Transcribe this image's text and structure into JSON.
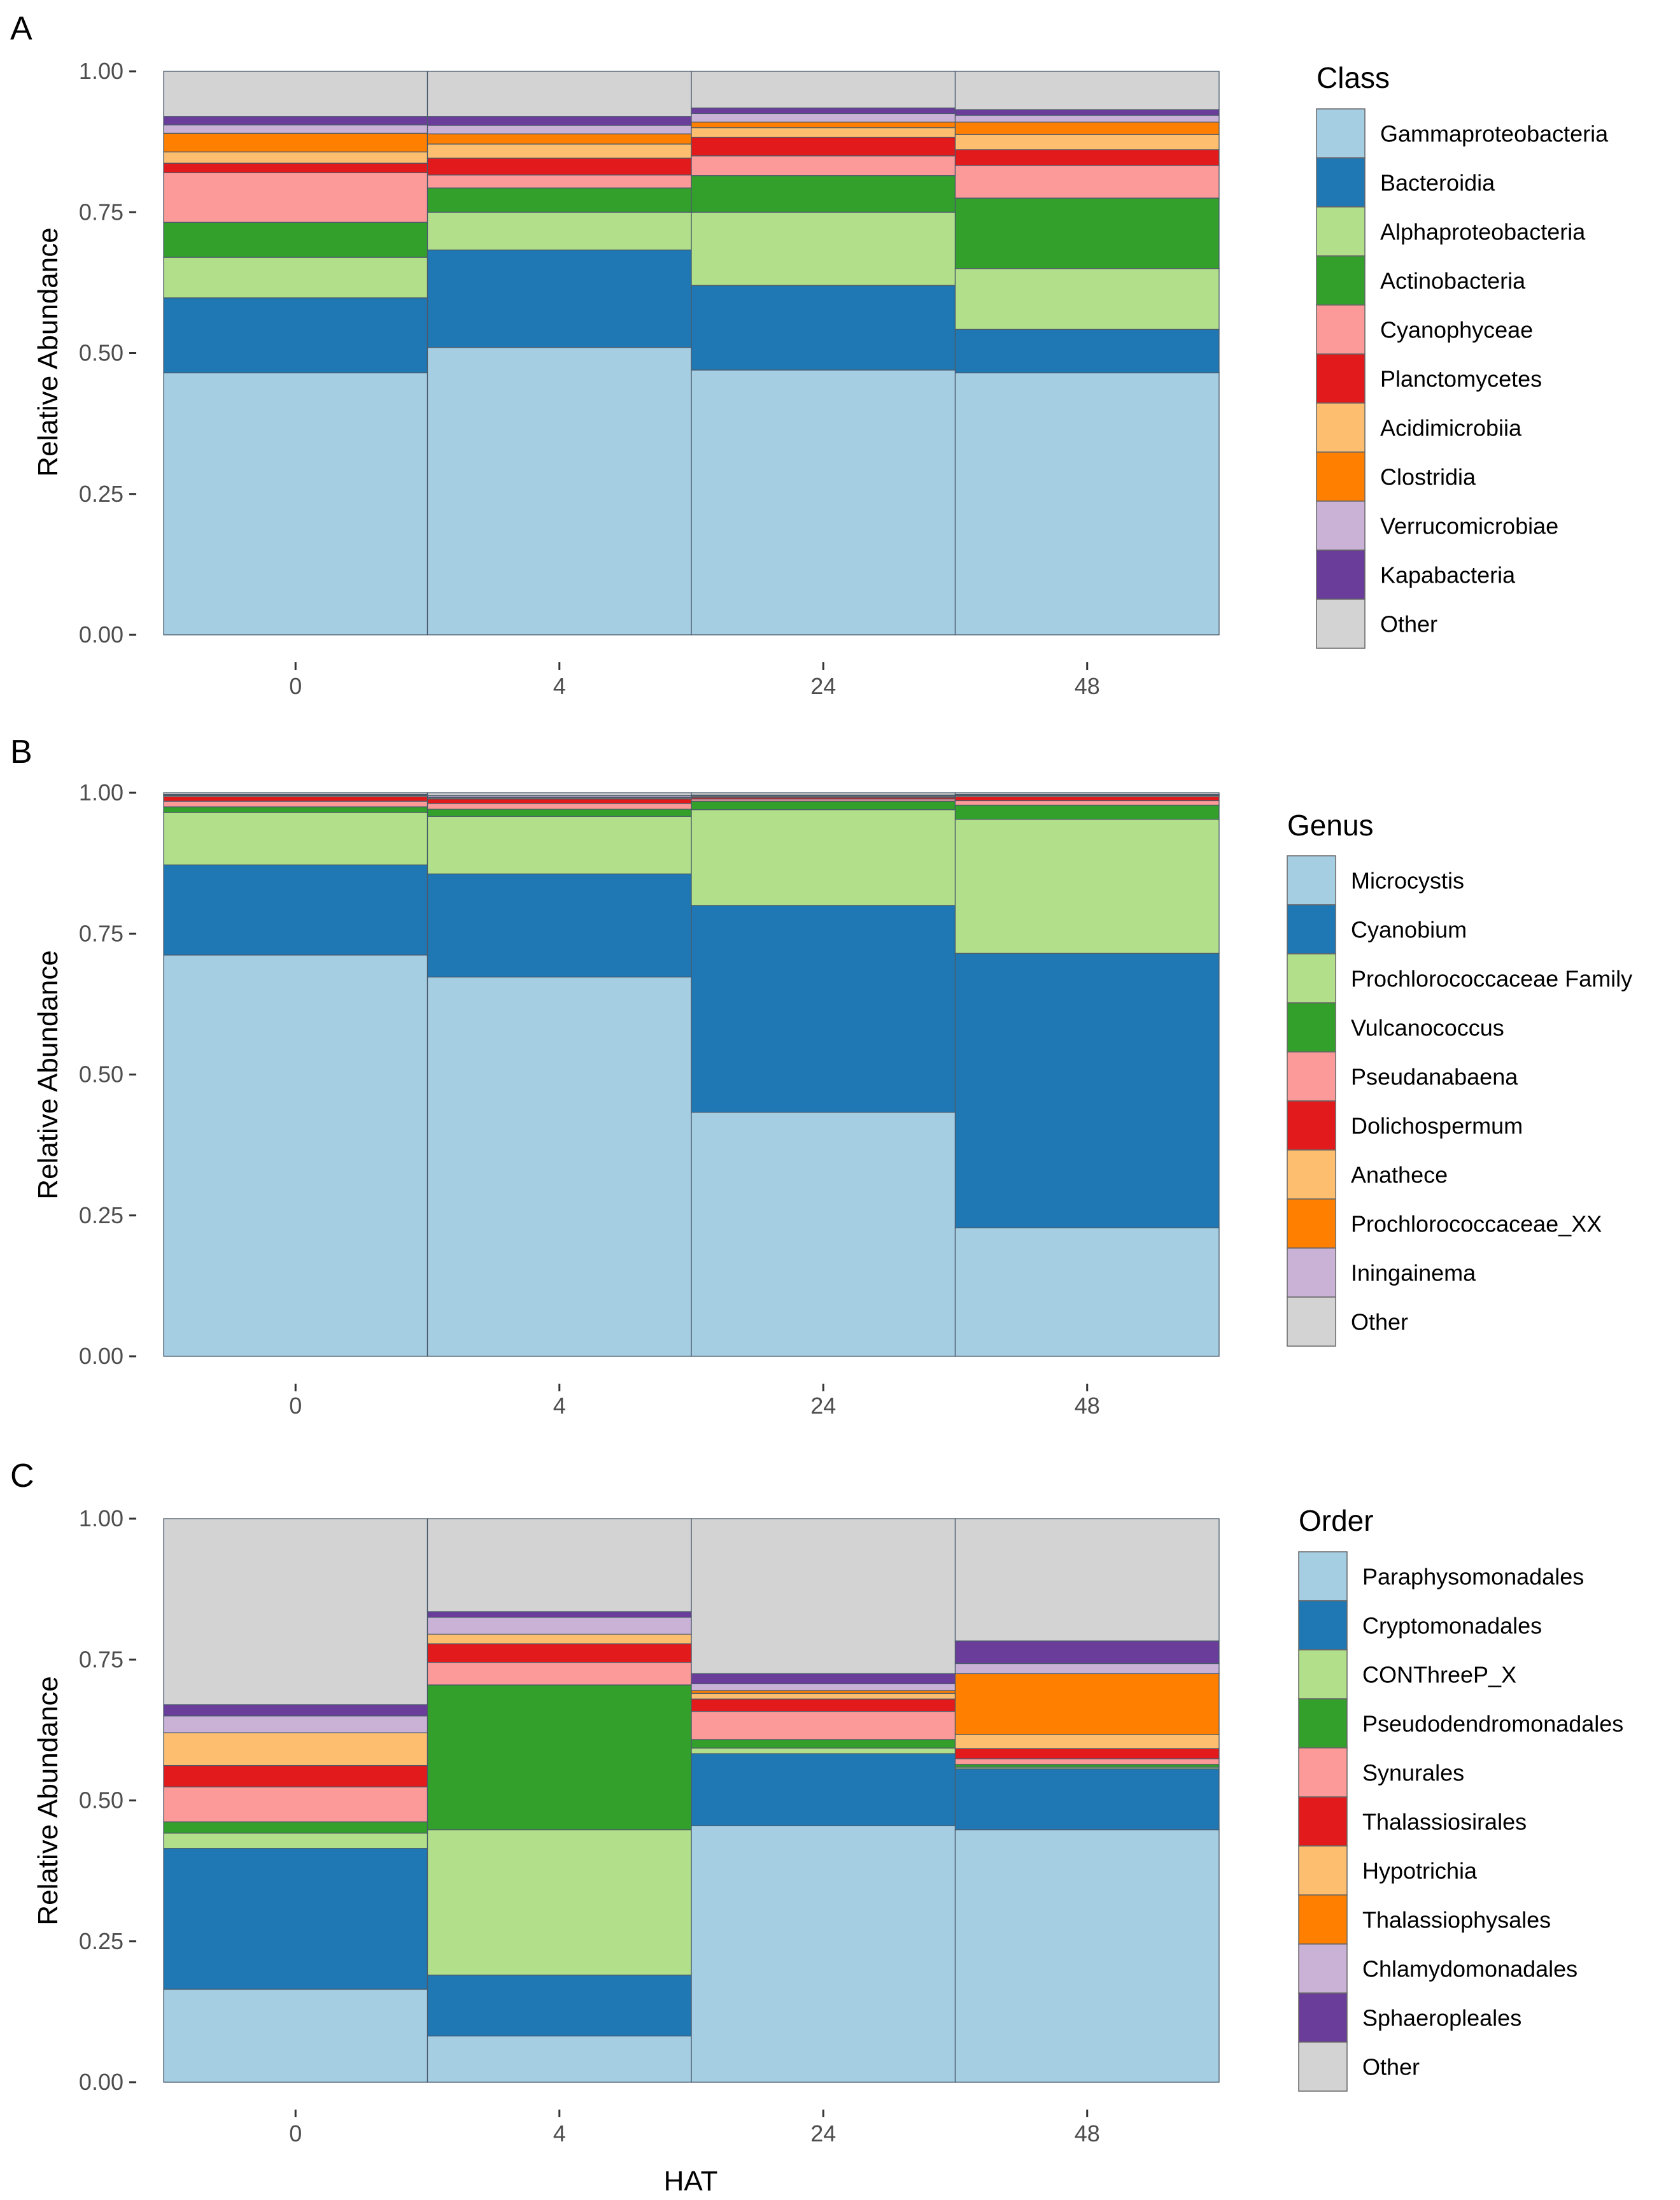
{
  "figure": {
    "xlabel": "HAT",
    "ylabel": "Relative Abundance"
  },
  "chart_data": [
    {
      "panel": "A",
      "type": "bar",
      "stacked": true,
      "title": "",
      "xlabel": "",
      "ylabel": "Relative Abundance",
      "ylim": [
        0,
        1
      ],
      "yticks": [
        "0.00",
        "0.25",
        "0.50",
        "0.75",
        "1.00"
      ],
      "categories": [
        "0",
        "4",
        "24",
        "48"
      ],
      "legend_title": "Class",
      "legend_position": "right",
      "series": [
        {
          "name": "Gammaproteobacteria",
          "color": "#A6CEE3",
          "values": [
            0.465,
            0.51,
            0.47,
            0.465
          ]
        },
        {
          "name": "Bacteroidia",
          "color": "#1F78B4",
          "values": [
            0.133,
            0.173,
            0.15,
            0.077
          ]
        },
        {
          "name": "Alphaproteobacteria",
          "color": "#B2DF8A",
          "values": [
            0.072,
            0.067,
            0.13,
            0.108
          ]
        },
        {
          "name": "Actinobacteria",
          "color": "#33A02C",
          "values": [
            0.062,
            0.043,
            0.065,
            0.125
          ]
        },
        {
          "name": "Cyanophyceae",
          "color": "#FB9A99",
          "values": [
            0.088,
            0.023,
            0.035,
            0.058
          ]
        },
        {
          "name": "Planctomycetes",
          "color": "#E31A1C",
          "values": [
            0.017,
            0.03,
            0.033,
            0.028
          ]
        },
        {
          "name": "Acidimicrobiia",
          "color": "#FDBF6F",
          "values": [
            0.02,
            0.025,
            0.017,
            0.027
          ]
        },
        {
          "name": "Clostridia",
          "color": "#FF7F00",
          "values": [
            0.033,
            0.018,
            0.01,
            0.022
          ]
        },
        {
          "name": "Verrucomicrobiae",
          "color": "#CAB2D6",
          "values": [
            0.015,
            0.015,
            0.015,
            0.012
          ]
        },
        {
          "name": "Kapabacteria",
          "color": "#6A3D9A",
          "values": [
            0.015,
            0.016,
            0.01,
            0.01
          ]
        },
        {
          "name": "Other",
          "color": "#D3D3D3",
          "values": [
            0.08,
            0.08,
            0.065,
            0.068
          ]
        }
      ]
    },
    {
      "panel": "B",
      "type": "bar",
      "stacked": true,
      "title": "",
      "xlabel": "",
      "ylabel": "Relative Abundance",
      "ylim": [
        0,
        1
      ],
      "yticks": [
        "0.00",
        "0.25",
        "0.50",
        "0.75",
        "1.00"
      ],
      "categories": [
        "0",
        "4",
        "24",
        "48"
      ],
      "legend_title": "Genus",
      "legend_position": "right",
      "series": [
        {
          "name": "Microcystis",
          "color": "#A6CEE3",
          "values": [
            0.712,
            0.673,
            0.433,
            0.228
          ]
        },
        {
          "name": "Cyanobium",
          "color": "#1F78B4",
          "values": [
            0.16,
            0.183,
            0.367,
            0.487
          ]
        },
        {
          "name": "Prochlorococcaceae Family",
          "color": "#B2DF8A",
          "values": [
            0.093,
            0.102,
            0.17,
            0.238
          ]
        },
        {
          "name": "Vulcanococcus",
          "color": "#33A02C",
          "values": [
            0.01,
            0.013,
            0.015,
            0.025
          ]
        },
        {
          "name": "Pseudanabaena",
          "color": "#FB9A99",
          "values": [
            0.01,
            0.01,
            0.004,
            0.008
          ]
        },
        {
          "name": "Dolichospermum",
          "color": "#E31A1C",
          "values": [
            0.008,
            0.008,
            0.003,
            0.007
          ]
        },
        {
          "name": "Anathece",
          "color": "#FDBF6F",
          "values": [
            0.002,
            0.002,
            0.002,
            0.002
          ]
        },
        {
          "name": "Prochlorococcaceae_XX",
          "color": "#FF7F00",
          "values": [
            0.001,
            0.001,
            0.001,
            0.001
          ]
        },
        {
          "name": "Iningainema",
          "color": "#CAB2D6",
          "values": [
            0.001,
            0.003,
            0.001,
            0.001
          ]
        },
        {
          "name": "Other",
          "color": "#D3D3D3",
          "values": [
            0.003,
            0.005,
            0.004,
            0.003
          ]
        }
      ]
    },
    {
      "panel": "C",
      "type": "bar",
      "stacked": true,
      "title": "",
      "xlabel": "HAT",
      "ylabel": "Relative Abundance",
      "ylim": [
        0,
        1
      ],
      "yticks": [
        "0.00",
        "0.25",
        "0.50",
        "0.75",
        "1.00"
      ],
      "categories": [
        "0",
        "4",
        "24",
        "48"
      ],
      "legend_title": "Order",
      "legend_position": "right",
      "series": [
        {
          "name": "Paraphysomonadales",
          "color": "#A6CEE3",
          "values": [
            0.165,
            0.082,
            0.455,
            0.448
          ]
        },
        {
          "name": "Cryptomonadales",
          "color": "#1F78B4",
          "values": [
            0.25,
            0.108,
            0.128,
            0.108
          ]
        },
        {
          "name": "CONThreeP_X",
          "color": "#B2DF8A",
          "values": [
            0.027,
            0.258,
            0.01,
            0.003
          ]
        },
        {
          "name": "Pseudodendromonadales",
          "color": "#33A02C",
          "values": [
            0.02,
            0.257,
            0.015,
            0.005
          ]
        },
        {
          "name": "Synurales",
          "color": "#FB9A99",
          "values": [
            0.062,
            0.04,
            0.05,
            0.01
          ]
        },
        {
          "name": "Thalassiosirales",
          "color": "#E31A1C",
          "values": [
            0.038,
            0.033,
            0.022,
            0.018
          ]
        },
        {
          "name": "Hypotrichia",
          "color": "#FDBF6F",
          "values": [
            0.058,
            0.017,
            0.01,
            0.025
          ]
        },
        {
          "name": "Thalassiophysales",
          "color": "#FF7F00",
          "values": [
            0.0,
            0.0,
            0.005,
            0.108
          ]
        },
        {
          "name": "Chlamydomonadales",
          "color": "#CAB2D6",
          "values": [
            0.03,
            0.03,
            0.012,
            0.018
          ]
        },
        {
          "name": "Sphaeropleales",
          "color": "#6A3D9A",
          "values": [
            0.02,
            0.01,
            0.018,
            0.04
          ]
        },
        {
          "name": "Other",
          "color": "#D3D3D3",
          "values": [
            0.33,
            0.165,
            0.275,
            0.217
          ]
        }
      ]
    }
  ]
}
